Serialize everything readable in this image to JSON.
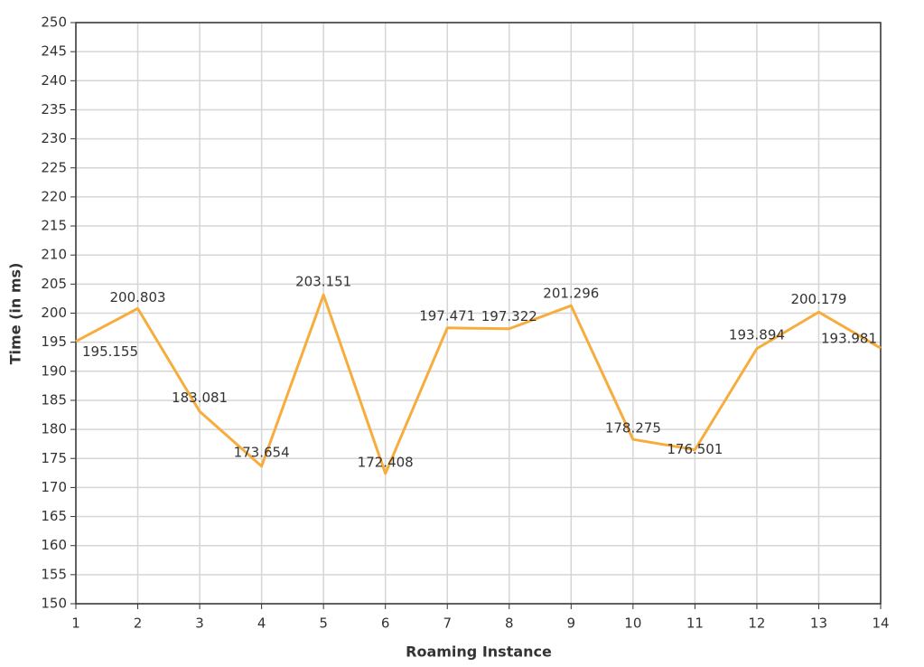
{
  "chart_data": {
    "type": "line",
    "x_label": "Roaming Instance",
    "y_label": "Time (in ms)",
    "x": [
      1,
      2,
      3,
      4,
      5,
      6,
      7,
      8,
      9,
      10,
      11,
      12,
      13,
      14
    ],
    "series": [
      {
        "color": "#f7ad3e",
        "values": [
          195.155,
          200.803,
          183.081,
          173.654,
          203.151,
          172.408,
          197.471,
          197.322,
          201.296,
          178.275,
          176.501,
          193.894,
          200.179,
          193.981
        ]
      }
    ],
    "xlim": [
      1,
      14
    ],
    "xticks": [
      1,
      2,
      3,
      4,
      5,
      6,
      7,
      8,
      9,
      10,
      11,
      12,
      13,
      14
    ],
    "ylim": [
      150,
      250
    ],
    "yticks": [
      150,
      155,
      160,
      165,
      170,
      175,
      180,
      185,
      190,
      195,
      200,
      205,
      210,
      215,
      220,
      225,
      230,
      235,
      240,
      245,
      250
    ],
    "grid": true
  }
}
